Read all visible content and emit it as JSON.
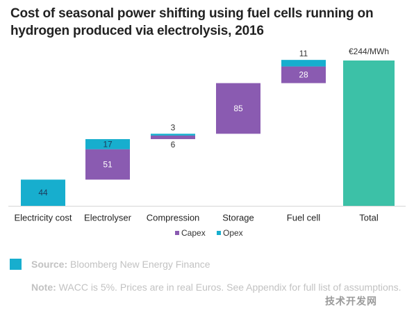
{
  "header": {
    "title": "Cost of seasonal power shifting using fuel cells running on hydrogen produced via electrolysis, 2016"
  },
  "chart_data": {
    "type": "bar",
    "subtype": "waterfall",
    "title": "Cost of seasonal power shifting using fuel cells running on hydrogen produced via electrolysis, 2016",
    "categories": [
      "Electricity cost",
      "Electrolyser",
      "Compression",
      "Storage",
      "Fuel cell",
      "Total"
    ],
    "series": [
      {
        "name": "Capex",
        "color": "#8a5bb1",
        "values": [
          0,
          51,
          6,
          85,
          28,
          0
        ]
      },
      {
        "name": "Opex",
        "color": "#17aece",
        "values": [
          44,
          17,
          3,
          0,
          11,
          0
        ]
      }
    ],
    "total": {
      "value": 244,
      "label": "€244/MWh",
      "color": "#3cc1a7"
    },
    "data_labels": [
      "44",
      "51",
      "17",
      "6",
      "3",
      "85",
      "28",
      "11",
      "€244/MWh"
    ],
    "xlabel": "",
    "ylabel": "",
    "ylim": [
      0,
      244
    ],
    "grid": false,
    "legend_position": "bottom-center"
  },
  "footer": {
    "source_label": "Source:",
    "source_text": "Bloomberg New Energy Finance",
    "note_label": "Note:",
    "note_text": "WACC is 5%. Prices are in real Euros. See Appendix for full list of assumptions.",
    "accent_color": "#17aece",
    "watermark": "技术开发网"
  }
}
